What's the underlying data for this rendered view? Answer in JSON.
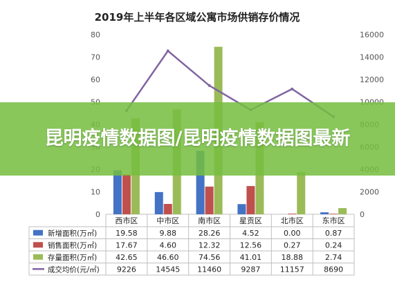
{
  "banner": {
    "title": "昆明疫情数据图/昆明疫情数据图最新"
  },
  "colors": {
    "new_supply": "#4472c4",
    "sales": "#c0504d",
    "inventory": "#9bbb59",
    "price": "#8064a2",
    "banner": "#76be40"
  },
  "chart_data": {
    "type": "bar",
    "title": "2019年上半年各区域公寓市场供销存价情况",
    "categories": [
      "西市区",
      "中市区",
      "南市区",
      "星贡区",
      "北市区",
      "东市区"
    ],
    "series": [
      {
        "name": "新增面积(万㎡)",
        "type": "bar",
        "axis": "left",
        "values": [
          19.58,
          9.88,
          28.26,
          4.52,
          0.0,
          0.87
        ]
      },
      {
        "name": "销售面积(万㎡)",
        "type": "bar",
        "axis": "left",
        "values": [
          17.67,
          4.6,
          12.32,
          12.56,
          0.27,
          0.24
        ]
      },
      {
        "name": "存量面积(万㎡)",
        "type": "bar",
        "axis": "left",
        "values": [
          42.65,
          46.6,
          74.56,
          41.01,
          18.88,
          2.74
        ]
      },
      {
        "name": "成交均价(元/㎡)",
        "type": "line",
        "axis": "right",
        "values": [
          9226,
          14545,
          11460,
          9287,
          11157,
          8690
        ]
      }
    ],
    "table_values": [
      [
        "19.58",
        "9.88",
        "28.26",
        "4.52",
        "0.00",
        "0.87"
      ],
      [
        "17.67",
        "4.60",
        "12.32",
        "12.56",
        "0.27",
        "0.24"
      ],
      [
        "42.65",
        "46.60",
        "74.56",
        "41.01",
        "18.88",
        "2.74"
      ],
      [
        "9226",
        "14545",
        "11460",
        "9287",
        "11157",
        "8690"
      ]
    ],
    "y_left": {
      "ylim": [
        0,
        80
      ],
      "ticks": [
        "0",
        "10",
        "20",
        "30",
        "40",
        "50",
        "60",
        "70",
        "80"
      ]
    },
    "y_right": {
      "ylim": [
        0,
        16000
      ],
      "ticks": [
        "0",
        "2000",
        "4000",
        "6000",
        "8000",
        "10000",
        "12000",
        "14000",
        "16000"
      ]
    },
    "grid": false,
    "legend": "table-below"
  }
}
